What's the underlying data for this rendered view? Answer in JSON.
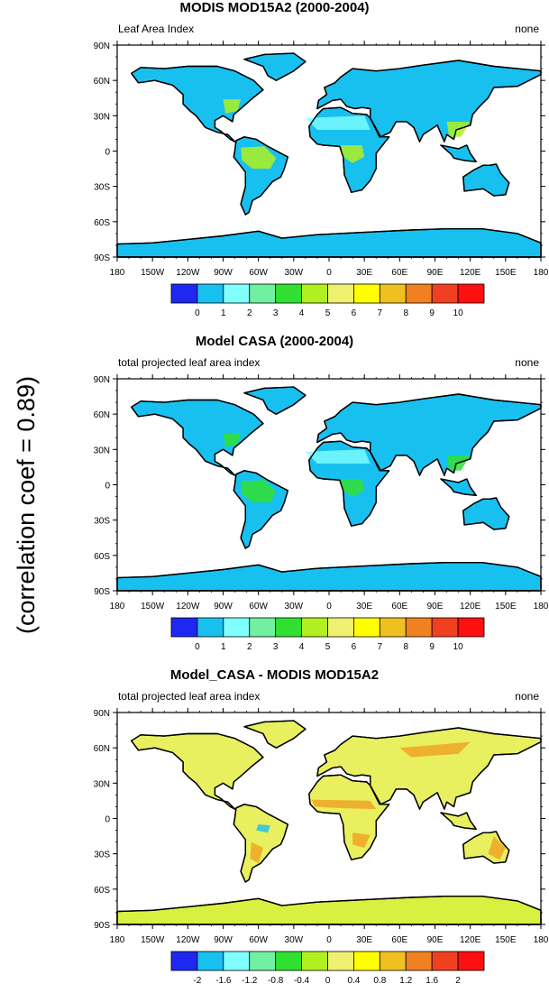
{
  "side_label": "(correlation coef = 0.89)",
  "lat_ticks": [
    "90N",
    "60N",
    "30N",
    "0",
    "30S",
    "60S",
    "90S"
  ],
  "lon_ticks": [
    "180",
    "150W",
    "120W",
    "90W",
    "60W",
    "30W",
    "0",
    "30E",
    "60E",
    "90E",
    "120E",
    "150E",
    "180"
  ],
  "panels": [
    {
      "title": "MODIS MOD15A2 (2000-2004)",
      "left_label": "Leaf Area Index",
      "right_label": "none",
      "colorbar": {
        "labels": [
          "0",
          "1",
          "2",
          "3",
          "4",
          "5",
          "6",
          "7",
          "8",
          "9",
          "10"
        ],
        "colors": [
          "#1e28f0",
          "#18c0f0",
          "#80ffff",
          "#70f0a0",
          "#30e030",
          "#b0f020",
          "#f0f070",
          "#ffff00",
          "#f0c020",
          "#f08020",
          "#f04020",
          "#ff1010"
        ]
      },
      "land_color": "#18c0f0",
      "antarctica_color": "#18c0f0"
    },
    {
      "title": "Model CASA (2000-2004)",
      "left_label": "total projected leaf area index",
      "right_label": "none",
      "colorbar": {
        "labels": [
          "0",
          "1",
          "2",
          "3",
          "4",
          "5",
          "6",
          "7",
          "8",
          "9",
          "10"
        ],
        "colors": [
          "#1e28f0",
          "#18c0f0",
          "#80ffff",
          "#70f0a0",
          "#30e030",
          "#b0f020",
          "#f0f070",
          "#ffff00",
          "#f0c020",
          "#f08020",
          "#f04020",
          "#ff1010"
        ]
      },
      "land_color": "#18c0f0",
      "antarctica_color": "#18c0f0"
    },
    {
      "title": "Model_CASA - MODIS MOD15A2",
      "left_label": "total projected leaf area index",
      "right_label": "none",
      "colorbar": {
        "labels": [
          "-2",
          "-1.6",
          "-1.2",
          "-0.8",
          "-0.4",
          "0",
          "0.4",
          "0.8",
          "1.2",
          "1.6",
          "2"
        ],
        "colors": [
          "#1e28f0",
          "#18c0f0",
          "#80ffff",
          "#70f0a0",
          "#30e030",
          "#b0f020",
          "#f0f070",
          "#ffff00",
          "#f0c020",
          "#f08020",
          "#f04020",
          "#ff1010"
        ]
      },
      "land_color": "#e8f060",
      "antarctica_color": "#d8f040"
    }
  ]
}
